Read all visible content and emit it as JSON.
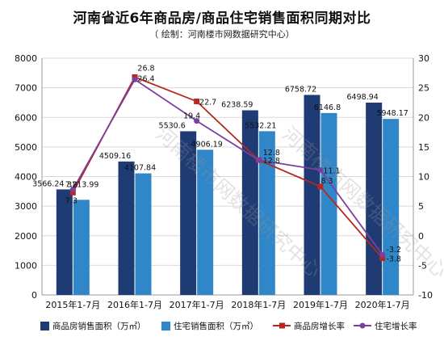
{
  "chart_data": {
    "type": "bar",
    "title": "河南省近6年商品房/商品住宅销售面积同期对比",
    "subtitle": "（ 绘制：河南楼市网数据研究中心）",
    "watermark": "河南楼市网数据研究中心",
    "categories": [
      "2015年1-7月",
      "2016年1-7月",
      "2017年1-7月",
      "2018年1-7月",
      "2019年1-7月",
      "2020年1-7月"
    ],
    "ylim": [
      0,
      8000
    ],
    "y2lim": [
      -10,
      30
    ],
    "yticks": [
      "0",
      "1000",
      "2000",
      "3000",
      "4000",
      "5000",
      "6000",
      "7000",
      "8000"
    ],
    "y2ticks": [
      "-10",
      "-5",
      "0",
      "5",
      "10",
      "15",
      "20",
      "25",
      "30"
    ],
    "grid": true,
    "legend_position": "bottom",
    "bar_series": [
      {
        "name": "商品房销售面积（万㎡）",
        "values": [
          3566.24,
          4509.16,
          5530.6,
          6238.59,
          6758.72,
          6498.94
        ],
        "labels": [
          "3566.24",
          "4509.16",
          "5530.6",
          "6238.59",
          "6758.72",
          "6498.94"
        ],
        "color": "#1f3b73"
      },
      {
        "name": "住宅销售面积（万㎡）",
        "values": [
          3213.99,
          4107.84,
          4906.19,
          5532.21,
          6146.8,
          5948.17
        ],
        "labels": [
          "3213.99",
          "4107.84",
          "4906.19",
          "5532.21",
          "6146.8",
          "5948.17"
        ],
        "color": "#2f86c8"
      }
    ],
    "line_series": [
      {
        "name": "商品房增长率",
        "values": [
          7.3,
          26.8,
          22.7,
          12.8,
          8.3,
          -3.8
        ],
        "labels": [
          "7.3",
          "26.8",
          "22.7",
          "12.8",
          "8.3",
          "-3.8"
        ],
        "color": "#b5281e",
        "marker": "square"
      },
      {
        "name": "住宅增长率",
        "values": [
          7.8,
          26.4,
          19.4,
          12.8,
          11.1,
          -3.2
        ],
        "labels": [
          "7.8",
          "26.4",
          "19.4",
          "12.8",
          "11.1",
          "-3.2"
        ],
        "color": "#7b3fa0",
        "marker": "circle"
      }
    ]
  }
}
